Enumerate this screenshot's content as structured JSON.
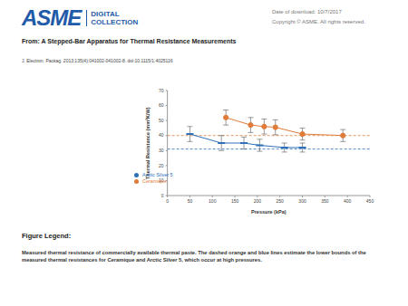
{
  "header": {
    "logo": {
      "name": "ASME",
      "line1": "DIGITAL",
      "line2": "COLLECTION"
    },
    "date": "Date of download:  10/7/2017",
    "copyright": "Copyright © ASME. All rights reserved.",
    "title": "From: A Stepped-Bar Apparatus for Thermal Resistance Measurements",
    "citation": "J. Electron. Packag. 2013;135(4):041002-041002-8. doi:10.1115/1.4025116"
  },
  "chart_data": {
    "type": "scatter",
    "x_label": "Pressure (kPa)",
    "y_label": "Thermal Resistance (mm²K/W)",
    "xlim": [
      0,
      450
    ],
    "xticks": [
      0,
      50,
      100,
      150,
      200,
      250,
      300,
      350,
      400,
      450
    ],
    "ylim": [
      0,
      70
    ],
    "yticks": [
      0,
      10,
      20,
      30,
      40,
      50,
      60,
      70
    ],
    "legend": "lower left",
    "series": [
      {
        "name": "Ceramique",
        "color": "#e07b39",
        "marker": "circle",
        "x": [
          130,
          185,
          215,
          240,
          300,
          390
        ],
        "values": [
          52,
          47,
          46,
          45.5,
          41,
          40
        ],
        "errors": [
          5,
          5,
          5,
          5,
          4,
          4
        ],
        "lower_bound": 40
      },
      {
        "name": "Arctic Silver 5",
        "color": "#2e6fb7",
        "marker": "dash",
        "x": [
          50,
          120,
          170,
          205,
          260,
          300
        ],
        "values": [
          41,
          35,
          35,
          33.5,
          32,
          32
        ],
        "errors": [
          5,
          5,
          4,
          4,
          3,
          3
        ],
        "lower_bound": 31
      }
    ]
  },
  "figure_legend": {
    "heading": "Figure Legend:",
    "text": "Measured thermal resistance of commercially available thermal paste. The dashed orange and blue lines estimate the lower bounds of the measured thermal resistances for Ceramique and Arctic Silver 5, which occur at high pressures."
  }
}
